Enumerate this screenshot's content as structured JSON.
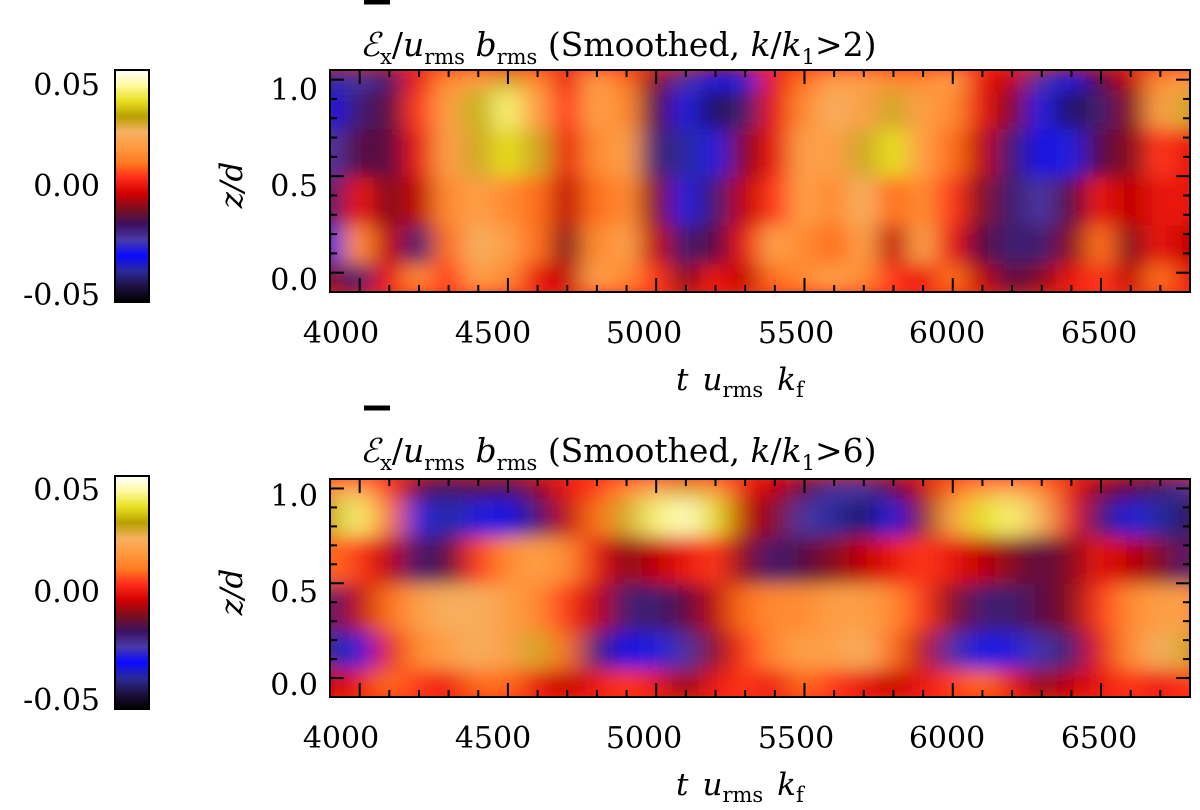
{
  "colorscale": [
    "#000000",
    "#1e1040",
    "#2a2a9a",
    "#0a0aff",
    "#4a3aa8",
    "#3c1060",
    "#7a0f20",
    "#d00000",
    "#ff2a1a",
    "#ff7a20",
    "#ff9a40",
    "#f5b060",
    "#b8a000",
    "#e8e020",
    "#fff9a0",
    "#ffffff"
  ],
  "chart_data": [
    {
      "type": "heatmap",
      "title": "Ex/urms brms (Smoothed, k/k1>2)",
      "title_parts": {
        "symbol": "ℰ",
        "symbol_sub": "x",
        "slash": "/",
        "u": "u",
        "u_sub": "rms",
        "b": "b",
        "b_sub": "rms",
        "paren": "(Smoothed,",
        "k": "k",
        "slash2": "/",
        "k1": "k",
        "k1_sub": "1",
        "rel": ">2)"
      },
      "xlabel": "t urms kf",
      "xlabel_parts": {
        "t": "t",
        "u": "u",
        "u_sub": "rms",
        "k": "k",
        "k_sub": "f"
      },
      "ylabel": "z/d",
      "xlim": [
        3900,
        6800
      ],
      "ylim": [
        -0.1,
        1.05
      ],
      "xticks": [
        "4000",
        "4500",
        "5000",
        "5500",
        "6000",
        "6500"
      ],
      "yticks": [
        "0.0",
        "0.5",
        "1.0"
      ],
      "colorbar": {
        "range": [
          -0.055,
          0.055
        ],
        "ticks": [
          "0.05",
          "0.00",
          "-0.05"
        ]
      },
      "z_levels": [
        -0.1,
        0.05,
        0.25,
        0.5,
        0.75,
        0.95,
        1.05
      ],
      "times": [
        3900,
        4000,
        4100,
        4200,
        4300,
        4400,
        4500,
        4600,
        4700,
        4800,
        4900,
        5000,
        5100,
        5200,
        5300,
        5400,
        5500,
        5600,
        5700,
        5800,
        5900,
        6000,
        6100,
        6200,
        6300,
        6400,
        6500,
        6600,
        6700,
        6800
      ],
      "values": [
        [
          -0.01,
          -0.02,
          0.0,
          0.015,
          0.005,
          0.02,
          0.015,
          0.0,
          -0.005,
          0.02,
          0.015,
          0.005,
          -0.01,
          0.0,
          -0.005,
          0.01,
          0.015,
          0.02,
          0.015,
          0.005,
          0.0,
          0.01,
          -0.005,
          -0.015,
          -0.01,
          0.0,
          0.005,
          -0.005,
          0.01,
          0.0
        ],
        [
          -0.03,
          0.015,
          -0.005,
          -0.02,
          0.01,
          0.025,
          0.02,
          0.01,
          -0.01,
          0.015,
          0.02,
          -0.005,
          -0.02,
          -0.015,
          0.0,
          0.02,
          0.015,
          0.01,
          0.02,
          -0.005,
          0.02,
          0.0,
          -0.015,
          -0.02,
          -0.02,
          -0.01,
          0.01,
          -0.01,
          0.0,
          -0.005
        ],
        [
          -0.02,
          0.0,
          -0.01,
          -0.005,
          0.015,
          0.02,
          0.015,
          0.01,
          -0.005,
          0.01,
          0.015,
          -0.01,
          -0.03,
          -0.02,
          -0.005,
          0.005,
          0.02,
          0.015,
          0.025,
          0.01,
          0.015,
          0.005,
          -0.01,
          -0.02,
          -0.025,
          -0.015,
          0.0,
          -0.005,
          0.0,
          0.0
        ],
        [
          -0.025,
          -0.015,
          -0.015,
          0.0,
          0.02,
          0.03,
          0.04,
          0.03,
          0.0,
          0.015,
          0.02,
          -0.02,
          -0.04,
          -0.03,
          -0.01,
          0.0,
          0.02,
          0.02,
          0.03,
          0.04,
          0.02,
          0.01,
          -0.005,
          -0.02,
          -0.035,
          -0.03,
          -0.015,
          -0.01,
          0.005,
          0.0
        ],
        [
          -0.035,
          -0.02,
          -0.015,
          0.005,
          0.02,
          0.035,
          0.045,
          0.02,
          0.005,
          0.02,
          0.015,
          -0.015,
          -0.03,
          -0.045,
          -0.02,
          0.0,
          0.015,
          0.025,
          0.02,
          0.03,
          0.02,
          0.015,
          0.0,
          -0.01,
          -0.03,
          -0.045,
          -0.02,
          -0.01,
          0.02,
          0.03
        ],
        [
          -0.04,
          -0.025,
          -0.02,
          0.0,
          0.015,
          0.02,
          0.03,
          0.015,
          0.0,
          0.02,
          0.01,
          -0.01,
          -0.025,
          -0.035,
          -0.03,
          0.0,
          0.01,
          0.02,
          0.02,
          0.015,
          0.015,
          0.02,
          0.0,
          -0.005,
          -0.025,
          -0.035,
          -0.015,
          -0.005,
          0.015,
          0.02
        ]
      ]
    },
    {
      "type": "heatmap",
      "title": "Ex/urms brms (Smoothed, k/k1>6)",
      "title_parts": {
        "symbol": "ℰ",
        "symbol_sub": "x",
        "slash": "/",
        "u": "u",
        "u_sub": "rms",
        "b": "b",
        "b_sub": "rms",
        "paren": "(Smoothed,",
        "k": "k",
        "slash2": "/",
        "k1": "k",
        "k1_sub": "1",
        "rel": ">6)"
      },
      "xlabel": "t urms kf",
      "xlabel_parts": {
        "t": "t",
        "u": "u",
        "u_sub": "rms",
        "k": "k",
        "k_sub": "f"
      },
      "ylabel": "z/d",
      "xlim": [
        3900,
        6800
      ],
      "ylim": [
        -0.1,
        1.05
      ],
      "xticks": [
        "4000",
        "4500",
        "5000",
        "5500",
        "6000",
        "6500"
      ],
      "yticks": [
        "0.0",
        "0.5",
        "1.0"
      ],
      "colorbar": {
        "range": [
          -0.055,
          0.055
        ],
        "ticks": [
          "0.05",
          "0.00",
          "-0.05"
        ]
      },
      "z_levels": [
        -0.1,
        0.05,
        0.25,
        0.5,
        0.75,
        0.95,
        1.05
      ],
      "times": [
        3900,
        4000,
        4100,
        4200,
        4300,
        4400,
        4500,
        4600,
        4700,
        4800,
        4900,
        5000,
        5100,
        5200,
        5300,
        5400,
        5500,
        5600,
        5700,
        5800,
        5900,
        6000,
        6100,
        6200,
        6300,
        6400,
        6500,
        6600,
        6700,
        6800
      ],
      "values": [
        [
          -0.005,
          0.0,
          0.01,
          0.005,
          0.0,
          0.01,
          0.01,
          0.0,
          -0.005,
          0.0,
          0.005,
          0.0,
          -0.01,
          0.0,
          0.005,
          0.0,
          0.01,
          0.005,
          0.0,
          -0.005,
          0.0,
          0.005,
          0.01,
          0.0,
          -0.01,
          -0.005,
          0.0,
          0.005,
          0.0,
          0.005
        ],
        [
          -0.04,
          -0.03,
          0.0,
          0.015,
          0.02,
          0.025,
          0.02,
          0.03,
          0.01,
          -0.02,
          -0.035,
          -0.03,
          -0.025,
          -0.01,
          0.005,
          0.015,
          0.02,
          0.02,
          0.025,
          0.01,
          -0.005,
          -0.025,
          -0.035,
          -0.03,
          -0.025,
          -0.02,
          0.0,
          0.015,
          0.025,
          0.03
        ],
        [
          -0.02,
          -0.005,
          0.01,
          0.02,
          0.025,
          0.025,
          0.02,
          0.015,
          0.005,
          -0.005,
          -0.02,
          -0.02,
          -0.015,
          -0.005,
          0.01,
          0.015,
          0.015,
          0.02,
          0.02,
          0.015,
          0.005,
          -0.01,
          -0.02,
          -0.02,
          -0.015,
          -0.01,
          0.005,
          0.015,
          0.02,
          0.02
        ],
        [
          0.01,
          0.005,
          -0.005,
          -0.02,
          -0.015,
          0.005,
          0.015,
          0.02,
          0.015,
          0.0,
          -0.01,
          -0.005,
          0.0,
          0.005,
          -0.01,
          -0.02,
          -0.015,
          -0.01,
          -0.005,
          0.0,
          0.005,
          0.0,
          -0.005,
          -0.01,
          -0.015,
          -0.01,
          0.0,
          -0.005,
          -0.01,
          -0.02
        ],
        [
          0.035,
          0.045,
          0.01,
          -0.03,
          -0.04,
          -0.03,
          -0.035,
          -0.02,
          -0.005,
          0.01,
          0.03,
          0.045,
          0.05,
          0.04,
          -0.005,
          -0.01,
          -0.025,
          -0.04,
          -0.045,
          -0.03,
          -0.01,
          0.02,
          0.04,
          0.045,
          0.025,
          0.0,
          -0.02,
          -0.03,
          -0.04,
          -0.045
        ],
        [
          0.02,
          0.025,
          0.005,
          -0.015,
          -0.02,
          -0.015,
          -0.02,
          -0.01,
          0.0,
          0.005,
          0.015,
          0.025,
          0.03,
          0.02,
          0.0,
          -0.005,
          -0.015,
          -0.025,
          -0.025,
          -0.015,
          -0.005,
          0.01,
          0.02,
          0.025,
          0.015,
          0.0,
          -0.01,
          -0.015,
          -0.02,
          -0.025
        ]
      ]
    }
  ]
}
